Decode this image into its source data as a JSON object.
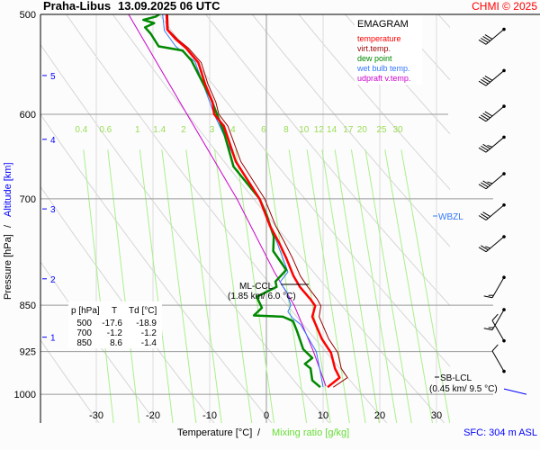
{
  "header": {
    "station": "Praha-Libus",
    "datetime": "13.09.2025 06 UTC",
    "copyright": "CHMI © 2025"
  },
  "legend": {
    "title": "EMAGRAM",
    "items": [
      {
        "label": "temperature",
        "color": "#ff0000"
      },
      {
        "label": "virt.temp.",
        "color": "#990000"
      },
      {
        "label": "dew point",
        "color": "#008800"
      },
      {
        "label": "wet bulb temp.",
        "color": "#3377ff"
      },
      {
        "label": "udpraft v.temp.",
        "color": "#cc00cc"
      }
    ]
  },
  "table": {
    "headers": [
      "p [hPa]",
      "T",
      "Td [°C]"
    ],
    "rows": [
      [
        "500",
        "-17.6",
        "-18.9"
      ],
      [
        "700",
        "-1.2",
        "-1.2"
      ],
      [
        "850",
        "8.6",
        "-1.4"
      ]
    ]
  },
  "annotations": {
    "wbzl": "WBZL",
    "ml_ccl": "ML-CCL",
    "ml_ccl_detail": "(1.85 km/ 6.0 °C)",
    "sb_lcl": "SB-LCL",
    "sb_lcl_detail": "(0.45 km/ 9.5 °C)",
    "sfc": "SFC: 304 m ASL"
  },
  "chart_data": {
    "type": "line",
    "title": "EMAGRAM",
    "xlabel": "Temperature [°C]",
    "xlabel2": "Mixing ratio [g/kg]",
    "ylabel": "Pressure [hPa]",
    "ylabel2": "Altitude [km]",
    "xlim": [
      -40,
      32
    ],
    "ylim_hpa": [
      1054,
      500
    ],
    "y_scale": "log",
    "x_ticks": [
      -30,
      -20,
      -10,
      0,
      10,
      20,
      30
    ],
    "p_ticks": [
      500,
      600,
      700,
      850,
      925,
      1000
    ],
    "altitude_ticks_km": [
      {
        "km": "1",
        "p": 901
      },
      {
        "km": "2",
        "p": 810
      },
      {
        "km": "3",
        "p": 713
      },
      {
        "km": "4",
        "p": 628
      },
      {
        "km": "5",
        "p": 559
      }
    ],
    "mixing_ratio_labels": [
      0.4,
      0.6,
      1,
      1.4,
      2,
      3,
      4,
      6,
      8,
      10,
      12,
      14,
      17,
      20,
      25,
      30
    ],
    "grid": true,
    "series": [
      {
        "name": "temperature",
        "color": "#ff0000",
        "width": 2.5,
        "points": [
          [
            987,
            10.8
          ],
          [
            970,
            12.9
          ],
          [
            954,
            12.1
          ],
          [
            927,
            11.4
          ],
          [
            904,
            9.8
          ],
          [
            868,
            8.1
          ],
          [
            851,
            8.6
          ],
          [
            841,
            7.8
          ],
          [
            822,
            5.9
          ],
          [
            806,
            4.8
          ],
          [
            780,
            3.5
          ],
          [
            758,
            2.2
          ],
          [
            735,
            0.6
          ],
          [
            700,
            -1.2
          ],
          [
            654,
            -5.4
          ],
          [
            613,
            -7.5
          ],
          [
            600,
            -9.2
          ],
          [
            587,
            -9.5
          ],
          [
            568,
            -10.8
          ],
          [
            546,
            -12
          ],
          [
            532,
            -14.1
          ],
          [
            523,
            -16
          ],
          [
            514,
            -17.5
          ],
          [
            500,
            -17.6
          ]
        ]
      },
      {
        "name": "virt.temp.",
        "color": "#990000",
        "width": 1,
        "points": [
          [
            987,
            11.8
          ],
          [
            970,
            14.3
          ],
          [
            954,
            13.2
          ],
          [
            927,
            12.6
          ],
          [
            904,
            11
          ],
          [
            868,
            9.3
          ],
          [
            851,
            9.6
          ],
          [
            841,
            9
          ],
          [
            822,
            7.3
          ],
          [
            806,
            6
          ],
          [
            780,
            4.6
          ],
          [
            758,
            3.2
          ],
          [
            735,
            1.6
          ],
          [
            700,
            -0.3
          ],
          [
            654,
            -4.5
          ],
          [
            613,
            -6.8
          ],
          [
            600,
            -8.4
          ],
          [
            587,
            -8.9
          ],
          [
            568,
            -10.3
          ],
          [
            546,
            -11.5
          ],
          [
            532,
            -13.7
          ],
          [
            523,
            -15.7
          ],
          [
            514,
            -17.3
          ],
          [
            500,
            -17.4
          ]
        ]
      },
      {
        "name": "dew point",
        "color": "#008800",
        "width": 2.5,
        "points": [
          [
            987,
            9.5
          ],
          [
            975,
            8.1
          ],
          [
            954,
            7.8
          ],
          [
            946,
            6.8
          ],
          [
            936,
            8.1
          ],
          [
            921,
            6.5
          ],
          [
            891,
            5.4
          ],
          [
            875,
            4.7
          ],
          [
            868,
            2.9
          ],
          [
            866,
            -2.2
          ],
          [
            854,
            -0.8
          ],
          [
            837,
            -1.7
          ],
          [
            822,
            1.8
          ],
          [
            814,
            1.6
          ],
          [
            797,
            3.5
          ],
          [
            770,
            1.2
          ],
          [
            750,
            1.3
          ],
          [
            720,
            0
          ],
          [
            700,
            -1.2
          ],
          [
            660,
            -5.8
          ],
          [
            620,
            -7.5
          ],
          [
            583,
            -9.8
          ],
          [
            544,
            -13.2
          ],
          [
            534,
            -14.8
          ],
          [
            530,
            -19
          ],
          [
            518,
            -20.4
          ],
          [
            512,
            -21.4
          ],
          [
            508,
            -19.8
          ],
          [
            505,
            -21.7
          ],
          [
            502,
            -19.5
          ],
          [
            500,
            -18.9
          ]
        ]
      },
      {
        "name": "wet bulb temp.",
        "color": "#3377ff",
        "width": 1,
        "points": [
          [
            987,
            10
          ],
          [
            960,
            9.5
          ],
          [
            925,
            8.8
          ],
          [
            880,
            6
          ],
          [
            870,
            4.6
          ],
          [
            860,
            3.8
          ],
          [
            850,
            4.3
          ],
          [
            830,
            3.6
          ],
          [
            815,
            2.4
          ],
          [
            800,
            3.8
          ],
          [
            750,
            1.5
          ],
          [
            700,
            -1.2
          ],
          [
            650,
            -5.6
          ],
          [
            600,
            -9.2
          ],
          [
            545,
            -12.6
          ],
          [
            530,
            -16
          ],
          [
            515,
            -18
          ],
          [
            500,
            -18.3
          ]
        ]
      },
      {
        "name": "udpraft v.temp.",
        "color": "#cc00cc",
        "width": 1,
        "points": [
          [
            985,
            10.5
          ],
          [
            925,
            8.3
          ],
          [
            850,
            4.9
          ],
          [
            800,
            1.4
          ],
          [
            700,
            -5.2
          ],
          [
            600,
            -14
          ],
          [
            500,
            -24.3
          ]
        ]
      }
    ],
    "wind_barbs": [
      {
        "p": 524,
        "dir": 230,
        "speed": 40
      },
      {
        "p": 565,
        "dir": 230,
        "speed": 40
      },
      {
        "p": 603,
        "dir": 230,
        "speed": 40
      },
      {
        "p": 638,
        "dir": 230,
        "speed": 35
      },
      {
        "p": 682,
        "dir": 230,
        "speed": 35
      },
      {
        "p": 722,
        "dir": 230,
        "speed": 30
      },
      {
        "p": 765,
        "dir": 230,
        "speed": 25
      },
      {
        "p": 824,
        "dir": 210,
        "speed": 15
      },
      {
        "p": 874,
        "dir": 210,
        "speed": 15
      },
      {
        "p": 925,
        "dir": 330,
        "speed": 10
      },
      {
        "p": 978,
        "dir": 330,
        "speed": 10
      }
    ]
  }
}
